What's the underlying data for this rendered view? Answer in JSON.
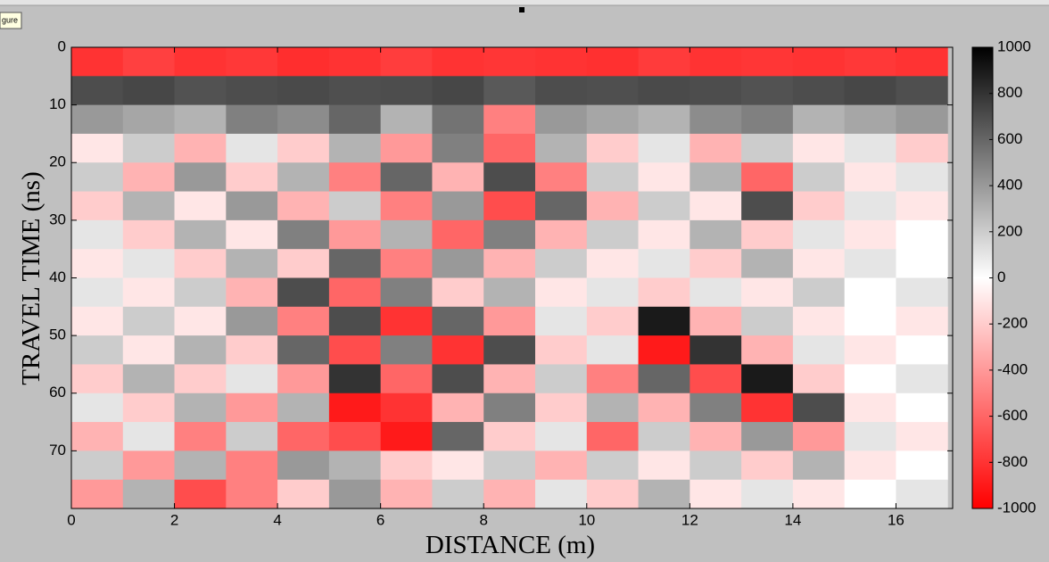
{
  "tooltip": "gure",
  "chart_data": {
    "type": "heatmap",
    "xlabel": "DISTANCE (m)",
    "ylabel": "TRAVEL TIME (ns)",
    "x": [
      0.5,
      1.5,
      2.5,
      3.5,
      4.5,
      5.5,
      6.5,
      7.5,
      8.5,
      9.5,
      10.5,
      11.5,
      12.5,
      13.5,
      14.5,
      15.5,
      16.5
    ],
    "y": [
      2.5,
      7.5,
      12.5,
      17.5,
      22.5,
      27.5,
      32.5,
      37.5,
      42.5,
      47.5,
      52.5,
      57.5,
      62.5,
      67.5,
      72.5,
      77.5
    ],
    "z": [
      [
        -800,
        -750,
        -800,
        -780,
        -820,
        -800,
        -760,
        -800,
        -790,
        -800,
        -810,
        -770,
        -800,
        -790,
        -800,
        -780,
        -800
      ],
      [
        700,
        720,
        680,
        700,
        710,
        690,
        700,
        720,
        650,
        700,
        690,
        710,
        700,
        680,
        700,
        720,
        690
      ],
      [
        400,
        350,
        300,
        500,
        450,
        600,
        300,
        550,
        -500,
        400,
        350,
        300,
        450,
        500,
        300,
        350,
        400
      ],
      [
        -100,
        200,
        -300,
        100,
        -200,
        300,
        -400,
        500,
        -600,
        300,
        -200,
        100,
        -300,
        200,
        -100,
        100,
        -200
      ],
      [
        200,
        -300,
        400,
        -200,
        300,
        -500,
        600,
        -300,
        700,
        -500,
        200,
        -100,
        300,
        -600,
        200,
        -100,
        100
      ],
      [
        -200,
        300,
        -100,
        400,
        -300,
        200,
        -500,
        400,
        -700,
        600,
        -300,
        200,
        -100,
        700,
        -200,
        100,
        -100
      ],
      [
        100,
        -200,
        300,
        -100,
        500,
        -400,
        300,
        -600,
        500,
        -300,
        200,
        -100,
        300,
        -200,
        100,
        -100,
        0
      ],
      [
        -100,
        100,
        -200,
        300,
        -200,
        600,
        -500,
        400,
        -300,
        200,
        -100,
        100,
        -200,
        300,
        -100,
        100,
        0
      ],
      [
        100,
        -100,
        200,
        -300,
        700,
        -600,
        500,
        -200,
        300,
        -100,
        100,
        -200,
        100,
        -100,
        200,
        0,
        100
      ],
      [
        -100,
        200,
        -100,
        400,
        -500,
        700,
        -800,
        600,
        -400,
        100,
        -200,
        900,
        -300,
        200,
        -100,
        0,
        -100
      ],
      [
        200,
        -100,
        300,
        -200,
        600,
        -700,
        500,
        -800,
        700,
        -200,
        100,
        -900,
        800,
        -300,
        100,
        -100,
        0
      ],
      [
        -200,
        300,
        -200,
        100,
        -400,
        800,
        -600,
        700,
        -300,
        200,
        -500,
        600,
        -700,
        900,
        -200,
        0,
        100
      ],
      [
        100,
        -200,
        300,
        -400,
        300,
        -900,
        -800,
        -300,
        500,
        -200,
        300,
        -300,
        500,
        -800,
        700,
        -100,
        0
      ],
      [
        -300,
        100,
        -500,
        200,
        -600,
        -700,
        -900,
        600,
        -200,
        100,
        -600,
        200,
        -300,
        400,
        -400,
        100,
        -100
      ],
      [
        200,
        -400,
        300,
        -500,
        400,
        300,
        -200,
        -100,
        200,
        -300,
        200,
        -100,
        200,
        -200,
        300,
        -100,
        0
      ],
      [
        -400,
        300,
        -700,
        -500,
        -200,
        400,
        -300,
        200,
        -300,
        100,
        -200,
        300,
        -100,
        100,
        -100,
        0,
        100
      ]
    ],
    "xlim": [
      0,
      17.1
    ],
    "xticks": [
      0,
      2,
      4,
      6,
      8,
      10,
      12,
      14,
      16
    ],
    "ylim": [
      80,
      0
    ],
    "yticks": [
      0,
      10,
      20,
      30,
      40,
      50,
      60,
      70
    ],
    "clim": [
      -1000,
      1000
    ],
    "cticks": [
      -1000,
      -800,
      -600,
      -400,
      -200,
      0,
      200,
      400,
      600,
      800,
      1000
    ],
    "colormap": [
      "#ff0000",
      "#ffffff",
      "#000000"
    ]
  }
}
